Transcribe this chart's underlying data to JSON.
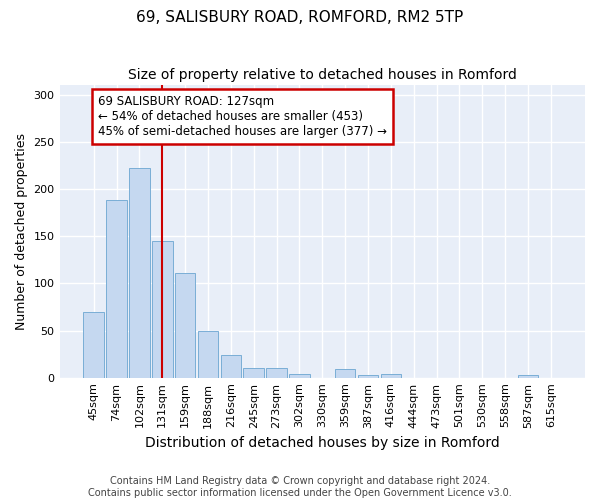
{
  "title": "69, SALISBURY ROAD, ROMFORD, RM2 5TP",
  "subtitle": "Size of property relative to detached houses in Romford",
  "xlabel": "Distribution of detached houses by size in Romford",
  "ylabel": "Number of detached properties",
  "categories": [
    "45sqm",
    "74sqm",
    "102sqm",
    "131sqm",
    "159sqm",
    "188sqm",
    "216sqm",
    "245sqm",
    "273sqm",
    "302sqm",
    "330sqm",
    "359sqm",
    "387sqm",
    "416sqm",
    "444sqm",
    "473sqm",
    "501sqm",
    "530sqm",
    "558sqm",
    "587sqm",
    "615sqm"
  ],
  "values": [
    70,
    189,
    222,
    145,
    111,
    50,
    24,
    10,
    10,
    4,
    0,
    9,
    3,
    4,
    0,
    0,
    0,
    0,
    0,
    3,
    0
  ],
  "bar_color": "#c5d8f0",
  "bar_edge_color": "#7aaed6",
  "vline_x": 3,
  "vline_color": "#cc0000",
  "annotation_text": "69 SALISBURY ROAD: 127sqm\n← 54% of detached houses are smaller (453)\n45% of semi-detached houses are larger (377) →",
  "annotation_box_facecolor": "#ffffff",
  "annotation_box_edgecolor": "#cc0000",
  "ylim_max": 310,
  "yticks": [
    0,
    50,
    100,
    150,
    200,
    250,
    300
  ],
  "footer": "Contains HM Land Registry data © Crown copyright and database right 2024.\nContains public sector information licensed under the Open Government Licence v3.0.",
  "fig_facecolor": "#ffffff",
  "axes_facecolor": "#e8eef8",
  "grid_color": "#ffffff",
  "title_fontsize": 11,
  "subtitle_fontsize": 10,
  "xlabel_fontsize": 10,
  "ylabel_fontsize": 9,
  "tick_fontsize": 8,
  "annotation_fontsize": 8.5,
  "footer_fontsize": 7
}
